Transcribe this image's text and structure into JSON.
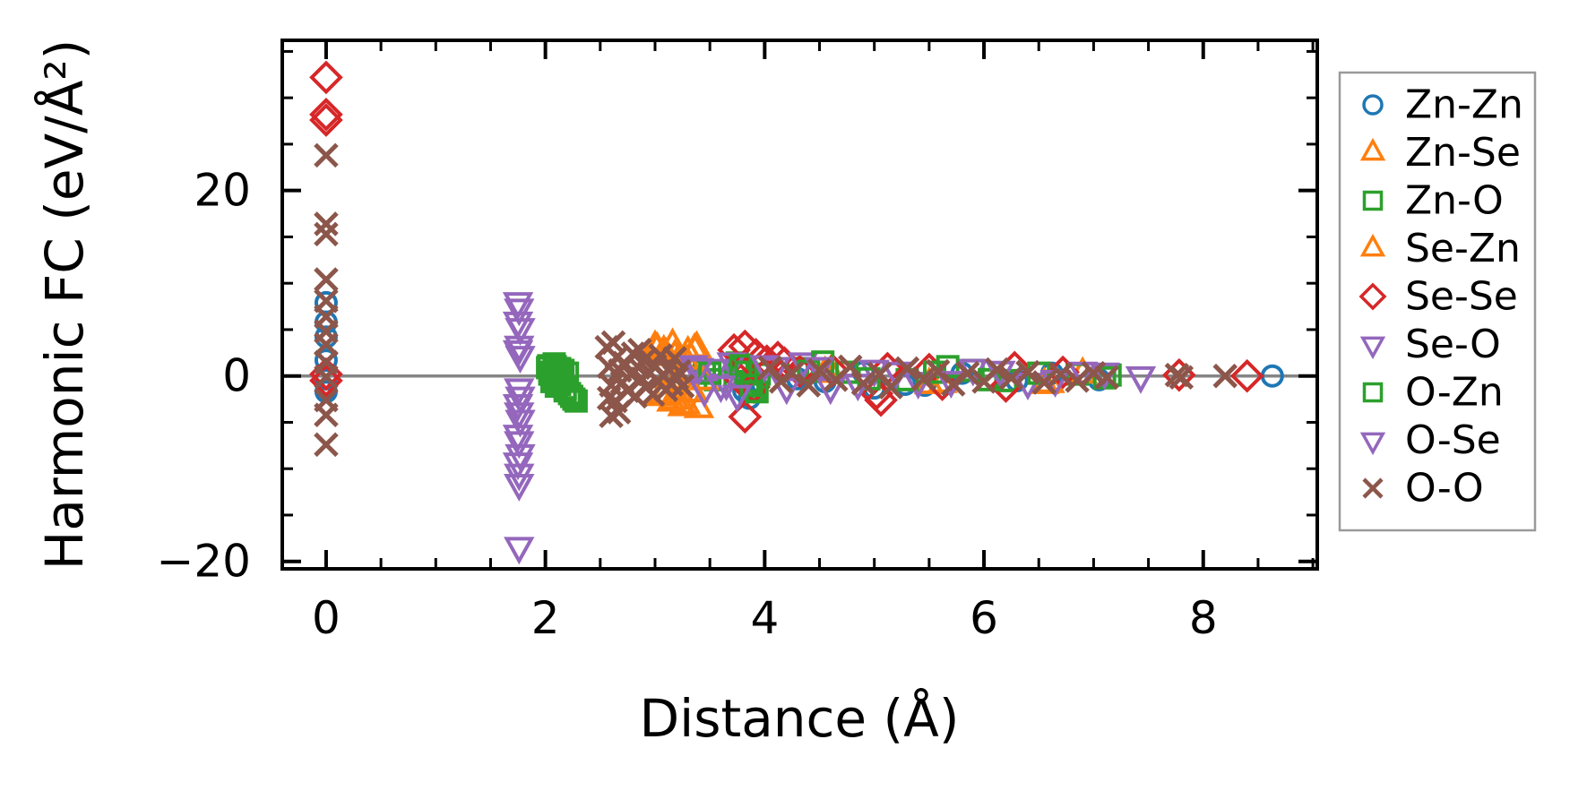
{
  "chart_data": {
    "type": "scatter",
    "title": "",
    "xlabel": "Distance (Å)",
    "ylabel": "Harmonic FC (eV/Å²)",
    "xlim": [
      -0.4,
      9.04
    ],
    "ylim": [
      -20.8,
      36.2
    ],
    "xticks": {
      "major": [
        0,
        2,
        4,
        6,
        8
      ],
      "minor_step": 0.5
    },
    "yticks": {
      "major": [
        -20,
        0,
        20
      ],
      "minor_step": 5
    },
    "xtick_labels": [
      "0",
      "2",
      "4",
      "6",
      "8"
    ],
    "ytick_labels": [
      "−20",
      "0",
      "20"
    ],
    "grid": false,
    "zero_line": {
      "y": 0,
      "color": "#858585"
    },
    "legend": {
      "position": "outside-right",
      "border_color": "#9a9a9a",
      "background": "#ffffff"
    },
    "series": [
      {
        "name": "Zn-Zn",
        "marker": "circle",
        "color": "#1f77b4",
        "points": [
          [
            0,
            7.9
          ],
          [
            0,
            5.8
          ],
          [
            0,
            4.2
          ],
          [
            0,
            1.7
          ],
          [
            0,
            -0.3
          ],
          [
            0,
            -1.7
          ],
          [
            3.81,
            -1.6
          ],
          [
            3.86,
            -2.4
          ],
          [
            4.3,
            -0.3
          ],
          [
            4.55,
            -0.6
          ],
          [
            4.9,
            0.4
          ],
          [
            5.0,
            -1.3
          ],
          [
            5.28,
            -0.9
          ],
          [
            5.46,
            -1.0
          ],
          [
            5.8,
            0.3
          ],
          [
            6.3,
            -0.5
          ],
          [
            6.62,
            0.3
          ],
          [
            7.05,
            -0.4
          ],
          [
            8.63,
            0.0
          ]
        ]
      },
      {
        "name": "Zn-Se",
        "marker": "triangle-up",
        "color": "#ff7f0e",
        "points": [
          [
            3.02,
            2.9
          ],
          [
            3.1,
            2.3
          ],
          [
            3.16,
            3.3
          ],
          [
            3.22,
            1.8
          ],
          [
            3.3,
            2.5
          ],
          [
            3.38,
            3.0
          ],
          [
            3.08,
            -2.0
          ],
          [
            3.18,
            -2.6
          ],
          [
            3.28,
            -3.1
          ],
          [
            3.4,
            -3.5
          ],
          [
            3.15,
            -0.4
          ],
          [
            3.25,
            0.5
          ],
          [
            4.6,
            0.4
          ],
          [
            5.5,
            -0.9
          ],
          [
            6.55,
            -0.9
          ],
          [
            6.9,
            0.2
          ]
        ]
      },
      {
        "name": "Zn-O",
        "marker": "square",
        "color": "#2ca02c",
        "points": [
          [
            2.02,
            0.9
          ],
          [
            2.04,
            0.2
          ],
          [
            2.06,
            -0.6
          ],
          [
            2.08,
            1.3
          ],
          [
            2.1,
            0.5
          ],
          [
            2.1,
            -1.1
          ],
          [
            2.13,
            0.8
          ],
          [
            2.15,
            -0.2
          ],
          [
            2.18,
            -1.6
          ],
          [
            2.2,
            0.3
          ],
          [
            2.24,
            -2.2
          ],
          [
            2.28,
            -2.7
          ],
          [
            3.45,
            0.5
          ],
          [
            3.55,
            -0.4
          ],
          [
            3.75,
            1.4
          ],
          [
            3.8,
            0.8
          ],
          [
            3.85,
            -0.6
          ],
          [
            3.9,
            -1.4
          ],
          [
            3.95,
            0.2
          ],
          [
            4.3,
            0.8
          ],
          [
            4.75,
            0.4
          ],
          [
            5.3,
            -0.4
          ],
          [
            5.9,
            0.6
          ],
          [
            6.2,
            -0.5
          ],
          [
            6.85,
            0.2
          ],
          [
            7.1,
            -0.2
          ]
        ]
      },
      {
        "name": "Se-Zn",
        "marker": "triangle-up",
        "color": "#ff7f0e",
        "points": [
          [
            3.0,
            3.1
          ],
          [
            3.08,
            2.6
          ],
          [
            3.18,
            2.1
          ],
          [
            3.28,
            1.7
          ],
          [
            3.36,
            2.8
          ],
          [
            3.05,
            -2.2
          ],
          [
            3.15,
            -2.8
          ],
          [
            3.25,
            -3.3
          ],
          [
            3.35,
            -1.8
          ],
          [
            3.45,
            -0.5
          ],
          [
            4.55,
            0.3
          ],
          [
            5.62,
            -0.8
          ],
          [
            6.6,
            -0.8
          ]
        ]
      },
      {
        "name": "Se-Se",
        "marker": "diamond",
        "color": "#d62728",
        "points": [
          [
            0,
            32.2
          ],
          [
            0,
            28.2
          ],
          [
            0,
            27.6
          ],
          [
            0,
            0.2
          ],
          [
            0,
            -0.5
          ],
          [
            3.72,
            2.8
          ],
          [
            3.82,
            3.2
          ],
          [
            3.92,
            2.3
          ],
          [
            4.02,
            1.6
          ],
          [
            4.12,
            2.0
          ],
          [
            4.18,
            1.4
          ],
          [
            3.78,
            -0.4
          ],
          [
            3.9,
            -1.2
          ],
          [
            3.82,
            -4.4
          ],
          [
            4.32,
            0.5
          ],
          [
            4.62,
            0.6
          ],
          [
            5.02,
            -1.9
          ],
          [
            5.06,
            -2.6
          ],
          [
            5.12,
            0.8
          ],
          [
            5.5,
            0.7
          ],
          [
            5.62,
            -0.9
          ],
          [
            6.2,
            -1.1
          ],
          [
            6.28,
            0.9
          ],
          [
            6.72,
            0.4
          ],
          [
            7.78,
            0.1
          ],
          [
            8.4,
            0.0
          ]
        ]
      },
      {
        "name": "Se-O",
        "marker": "triangle-down",
        "color": "#9467bd",
        "points": [
          [
            1.75,
            8.0
          ],
          [
            1.75,
            5.9
          ],
          [
            1.76,
            3.3
          ],
          [
            1.76,
            -1.3
          ],
          [
            1.75,
            -3.0
          ],
          [
            1.77,
            -4.7
          ],
          [
            1.76,
            -7.0
          ],
          [
            1.75,
            -9.3
          ],
          [
            1.76,
            -11.6
          ],
          [
            1.76,
            -18.4
          ],
          [
            3.35,
            1.2
          ],
          [
            3.45,
            -1.5
          ],
          [
            3.55,
            0.8
          ],
          [
            3.65,
            -0.8
          ],
          [
            3.7,
            1.5
          ],
          [
            4.1,
            1.0
          ],
          [
            4.35,
            1.5
          ],
          [
            4.6,
            -1.2
          ],
          [
            5.0,
            0.7
          ],
          [
            5.4,
            -0.6
          ],
          [
            5.9,
            0.8
          ],
          [
            6.4,
            -0.7
          ],
          [
            6.9,
            0.5
          ],
          [
            7.43,
            0.0
          ]
        ]
      },
      {
        "name": "O-Zn",
        "marker": "square",
        "color": "#2ca02c",
        "points": [
          [
            2.03,
            1.1
          ],
          [
            2.05,
            0.4
          ],
          [
            2.07,
            -0.4
          ],
          [
            2.09,
            1.0
          ],
          [
            2.11,
            0.1
          ],
          [
            2.13,
            -0.9
          ],
          [
            2.16,
            0.6
          ],
          [
            2.18,
            -1.3
          ],
          [
            2.22,
            -1.9
          ],
          [
            2.26,
            -2.5
          ],
          [
            3.5,
            0.3
          ],
          [
            3.78,
            1.1
          ],
          [
            3.83,
            0.4
          ],
          [
            3.88,
            -1.0
          ],
          [
            3.93,
            -1.7
          ],
          [
            4.4,
            0.5
          ],
          [
            4.53,
            1.5
          ],
          [
            4.95,
            -0.3
          ],
          [
            5.55,
            0.4
          ],
          [
            5.67,
            1.0
          ],
          [
            6.05,
            -0.4
          ],
          [
            6.5,
            0.3
          ],
          [
            7.15,
            0.1
          ]
        ]
      },
      {
        "name": "O-Se",
        "marker": "triangle-down",
        "color": "#9467bd",
        "points": [
          [
            1.76,
            7.3
          ],
          [
            1.77,
            5.2
          ],
          [
            1.75,
            2.8
          ],
          [
            1.77,
            2.2
          ],
          [
            1.77,
            -2.2
          ],
          [
            1.76,
            -3.9
          ],
          [
            1.75,
            -6.3
          ],
          [
            1.77,
            -8.4
          ],
          [
            1.76,
            -10.5
          ],
          [
            3.4,
            0.9
          ],
          [
            3.6,
            -1.0
          ],
          [
            3.75,
            -2.0
          ],
          [
            4.0,
            1.2
          ],
          [
            4.2,
            -1.2
          ],
          [
            4.5,
            1.0
          ],
          [
            4.85,
            -0.8
          ],
          [
            5.2,
            0.5
          ],
          [
            5.7,
            -0.5
          ],
          [
            6.15,
            0.6
          ],
          [
            6.65,
            -0.4
          ],
          [
            7.1,
            0.4
          ]
        ]
      },
      {
        "name": "O-O",
        "marker": "x",
        "color": "#8c564b",
        "points": [
          [
            0,
            23.8
          ],
          [
            0,
            16.4
          ],
          [
            0,
            15.3
          ],
          [
            0,
            10.4
          ],
          [
            0,
            8.1
          ],
          [
            0,
            6.4
          ],
          [
            0,
            4.8
          ],
          [
            0,
            3.4
          ],
          [
            0,
            1.5
          ],
          [
            0,
            -0.1
          ],
          [
            0,
            -2.6
          ],
          [
            0,
            -4.2
          ],
          [
            0,
            -7.4
          ],
          [
            2.56,
            3.1
          ],
          [
            2.58,
            1.0
          ],
          [
            2.6,
            -1.0
          ],
          [
            2.58,
            -2.4
          ],
          [
            2.6,
            -4.3
          ],
          [
            2.62,
            3.6
          ],
          [
            2.64,
            -2.7
          ],
          [
            2.65,
            2.0
          ],
          [
            2.67,
            -3.9
          ],
          [
            2.68,
            0.6
          ],
          [
            2.7,
            -0.7
          ],
          [
            2.72,
            1.4
          ],
          [
            2.75,
            -1.6
          ],
          [
            2.78,
            0.2
          ],
          [
            2.8,
            2.4
          ],
          [
            2.82,
            -2.2
          ],
          [
            2.85,
            0.9
          ],
          [
            2.86,
            2.8
          ],
          [
            2.88,
            -0.3
          ],
          [
            2.9,
            1.7
          ],
          [
            2.92,
            -1.2
          ],
          [
            2.95,
            0.4
          ],
          [
            2.98,
            -2.0
          ],
          [
            3.0,
            1.1
          ],
          [
            3.02,
            -0.5
          ],
          [
            3.05,
            2.2
          ],
          [
            3.08,
            0.0
          ],
          [
            3.1,
            -1.5
          ],
          [
            3.12,
            0.7
          ],
          [
            3.15,
            -0.9
          ],
          [
            3.18,
            1.9
          ],
          [
            3.2,
            -0.2
          ],
          [
            3.22,
            0.5
          ],
          [
            3.25,
            -1.1
          ],
          [
            4.05,
            0.9
          ],
          [
            4.15,
            -0.6
          ],
          [
            4.25,
            0.3
          ],
          [
            4.4,
            -1.0
          ],
          [
            4.5,
            0.6
          ],
          [
            4.65,
            -0.4
          ],
          [
            4.78,
            1.0
          ],
          [
            4.9,
            -0.8
          ],
          [
            5.05,
            0.2
          ],
          [
            5.15,
            -1.2
          ],
          [
            5.3,
            0.8
          ],
          [
            5.45,
            -0.3
          ],
          [
            5.58,
            0.5
          ],
          [
            5.72,
            -0.9
          ],
          [
            5.85,
            0.3
          ],
          [
            6.0,
            -0.6
          ],
          [
            6.12,
            0.7
          ],
          [
            6.25,
            -0.2
          ],
          [
            6.4,
            0.4
          ],
          [
            6.55,
            -0.7
          ],
          [
            6.7,
            0.2
          ],
          [
            6.85,
            -0.5
          ],
          [
            7.0,
            0.3
          ],
          [
            7.12,
            -0.15
          ],
          [
            7.76,
            0.1
          ],
          [
            7.8,
            -0.15
          ],
          [
            8.2,
            0.0
          ]
        ]
      }
    ]
  }
}
